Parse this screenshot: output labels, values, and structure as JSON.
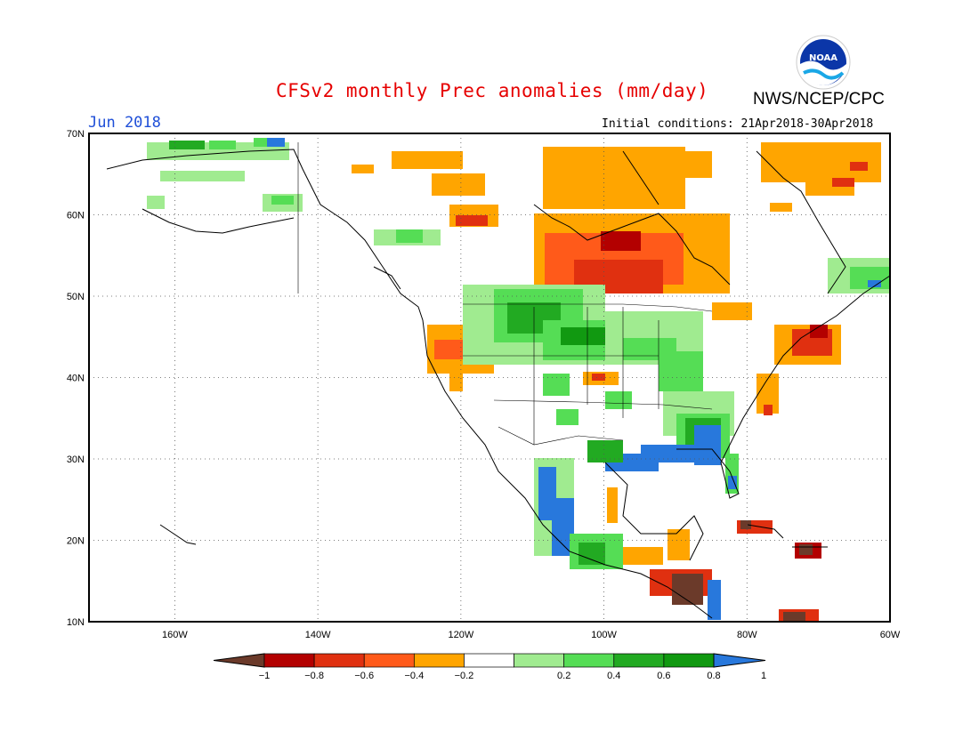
{
  "header": {
    "title": "CFSv2 monthly Prec anomalies (mm/day)",
    "agency": "NWS/NCEP/CPC",
    "month": "Jun 2018",
    "initial_conditions": "Initial conditions: 21Apr2018-30Apr2018",
    "logo_text": "NOAA"
  },
  "map": {
    "region": "North America",
    "lon_range": [
      -172,
      -60
    ],
    "lat_range": [
      10,
      70
    ],
    "gridlines": true,
    "lat_labels": [
      "70N",
      "60N",
      "50N",
      "40N",
      "30N",
      "20N",
      "10N"
    ],
    "lon_labels": [
      "160W",
      "140W",
      "120W",
      "100W",
      "80W",
      "60W"
    ]
  },
  "colorbar": {
    "labels": [
      "-1",
      "-0.8",
      "-0.6",
      "-0.4",
      "-0.2",
      "0.2",
      "0.4",
      "0.6",
      "0.8",
      "1"
    ],
    "colors": {
      "lt_-1": "#6b3a2a",
      "-1_-0.8": "#b30000",
      "-0.8_-0.6": "#e03010",
      "-0.6_-0.4": "#ff5a1a",
      "-0.4_-0.2": "#ffa500",
      "-0.2_0.2": "#ffffff",
      "0.2_0.4": "#a0eb90",
      "0.4_0.6": "#55dd55",
      "0.6_0.8": "#22aa22",
      "0.8_1": "#119911",
      "gt_1": "#2878dc"
    }
  }
}
